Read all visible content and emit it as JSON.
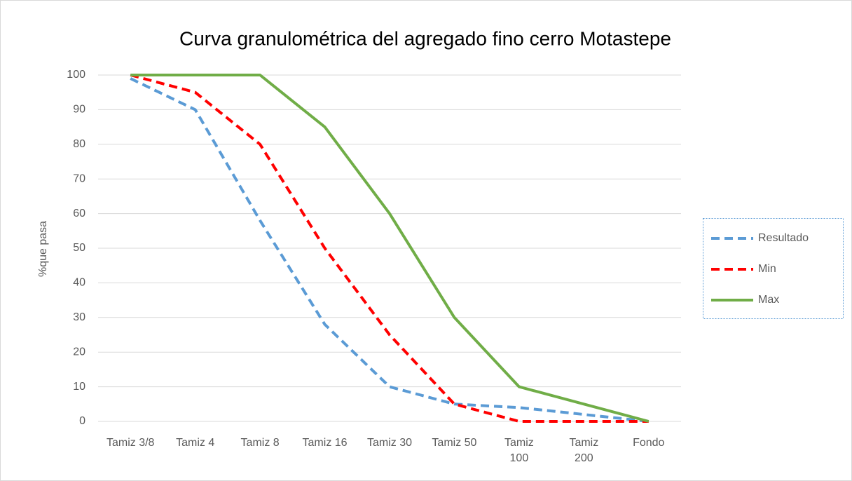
{
  "chart_data": {
    "type": "line",
    "title": "Curva granulométrica del agregado fino cerro Motastepe",
    "y_label": "%que pasa",
    "categories": [
      "Tamiz 3/8",
      "Tamiz 4",
      "Tamiz 8",
      "Tamiz 16",
      "Tamiz 30",
      "Tamiz 50",
      "Tamiz 100",
      "Tamiz 200",
      "Fondo"
    ],
    "series": [
      {
        "name": "Resultado",
        "color": "#5b9bd5",
        "style": "dashed",
        "values": [
          99,
          90,
          58,
          28,
          10,
          5,
          4,
          2,
          0
        ]
      },
      {
        "name": "Min",
        "color": "#ff0000",
        "style": "dashed",
        "values": [
          100,
          95,
          80,
          50,
          25,
          5,
          0,
          0,
          0
        ]
      },
      {
        "name": "Max",
        "color": "#70ad47",
        "style": "solid",
        "values": [
          100,
          100,
          100,
          85,
          60,
          30,
          10,
          5,
          0
        ]
      }
    ],
    "ylim": [
      0,
      100
    ],
    "yticks": [
      0,
      10,
      20,
      30,
      40,
      50,
      60,
      70,
      80,
      90,
      100
    ],
    "grid": true,
    "legend": "right"
  }
}
